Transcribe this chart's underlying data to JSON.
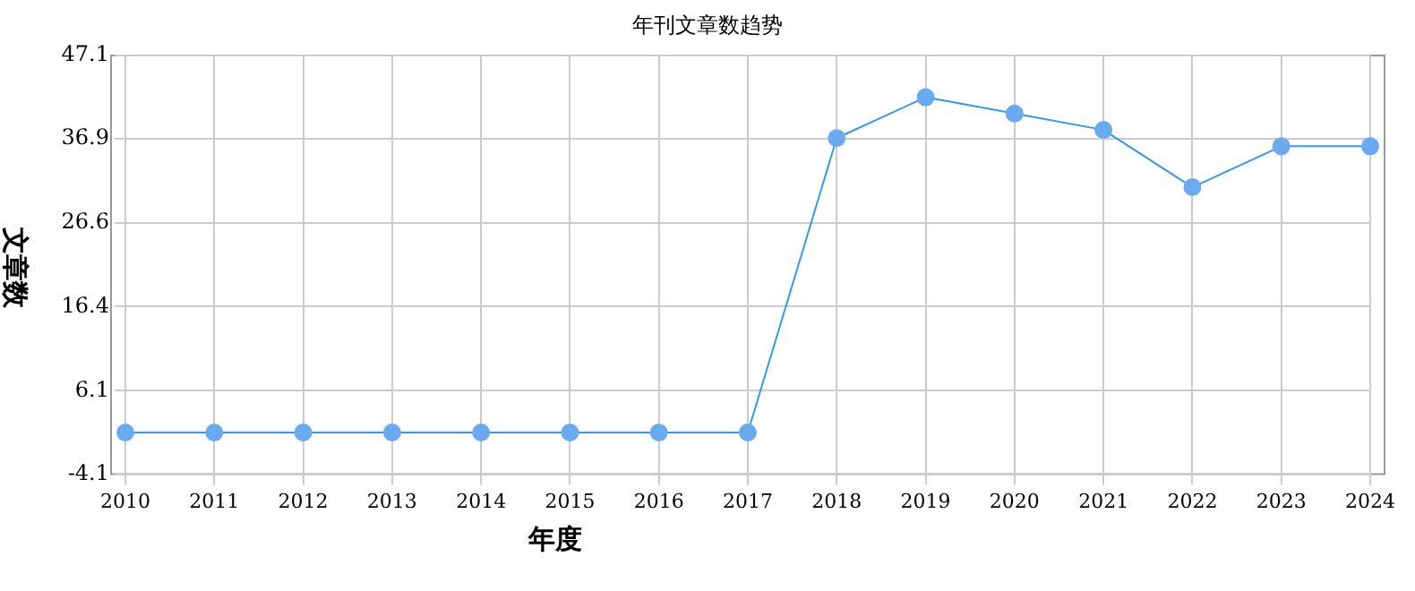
{
  "chart_data": {
    "type": "line",
    "title": "年刊文章数趋势",
    "xlabel": "年度",
    "ylabel": "文章数",
    "categories": [
      "2010",
      "2011",
      "2012",
      "2013",
      "2014",
      "2015",
      "2016",
      "2017",
      "2018",
      "2019",
      "2020",
      "2021",
      "2022",
      "2023",
      "2024"
    ],
    "series": [
      {
        "color": "#3399ee",
        "values": [
          1,
          1,
          1,
          1,
          1,
          1,
          1,
          1,
          37,
          42,
          40,
          38,
          31,
          36,
          36
        ]
      }
    ],
    "ylim": [
      -4.1,
      47.1
    ],
    "yticks": [
      -4.1,
      6.1,
      16.4,
      26.6,
      36.9,
      47.1
    ],
    "grid": true,
    "marker": "circle",
    "legend": false
  }
}
